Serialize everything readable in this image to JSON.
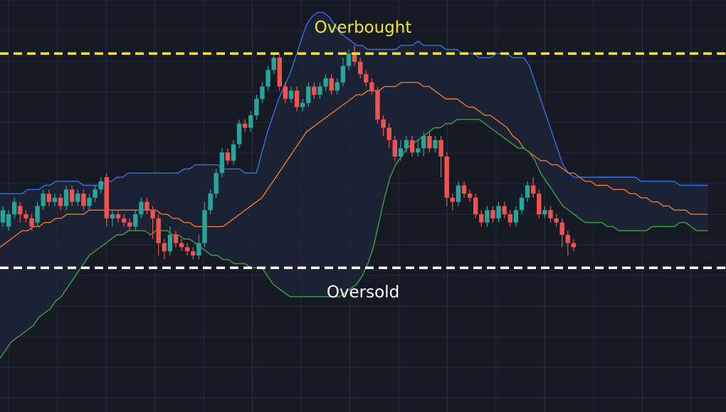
{
  "chart_data": {
    "type": "candlestick",
    "title": "",
    "xlabel": "",
    "ylabel": "",
    "ylim": [
      0,
      100
    ],
    "grid": true,
    "legend": "none",
    "annotations": {
      "overbought": {
        "text": "Overbought",
        "level": 87,
        "color": "#f2e232"
      },
      "oversold": {
        "text": "Oversold",
        "level": 35,
        "color": "#ffffff"
      }
    },
    "colors": {
      "background": "#161a25",
      "grid": "#262b3a",
      "up": "#26a69a",
      "down": "#ef5350",
      "upper_band": "#3a6ee8",
      "middle_band": "#f0782a",
      "lower_band": "#43a047",
      "band_fill": "#1c2638"
    },
    "bands": {
      "upper": [
        53,
        53,
        53,
        53,
        53,
        54,
        54,
        54,
        55,
        55,
        56,
        56,
        56,
        56,
        56,
        55,
        55,
        55,
        55,
        56,
        56,
        57,
        57,
        58,
        58,
        58,
        58,
        58,
        58,
        58,
        58,
        58,
        58,
        59,
        59,
        60,
        60,
        60,
        60,
        60,
        59,
        59,
        59,
        59,
        58,
        58,
        58,
        63,
        68,
        72,
        76,
        79,
        82,
        86,
        90,
        94,
        96,
        97,
        97,
        96,
        94,
        92,
        91,
        90,
        89,
        89,
        88,
        88,
        88,
        88,
        88,
        88,
        89,
        89,
        89,
        90,
        89,
        89,
        89,
        89,
        88,
        88,
        88,
        87,
        87,
        87,
        86,
        86,
        86,
        87,
        87,
        87,
        86,
        86,
        86,
        84,
        80,
        76,
        72,
        68,
        64,
        60,
        58,
        57,
        57,
        57,
        57,
        57,
        57,
        57,
        57,
        57,
        57,
        57,
        57,
        56,
        56,
        56,
        56,
        56,
        56,
        56,
        55,
        55,
        55,
        55,
        55,
        55
      ],
      "middle": [
        40,
        41,
        42,
        43,
        44,
        44,
        45,
        45,
        46,
        46,
        47,
        47,
        48,
        48,
        48,
        48,
        49,
        49,
        49,
        49,
        49,
        49,
        49,
        49,
        49,
        49,
        49,
        49,
        49,
        48,
        48,
        47,
        47,
        46,
        46,
        45,
        45,
        45,
        45,
        45,
        45,
        46,
        47,
        48,
        49,
        50,
        51,
        52,
        54,
        56,
        58,
        60,
        62,
        64,
        66,
        68,
        69,
        70,
        71,
        72,
        73,
        74,
        75,
        76,
        77,
        77,
        78,
        78,
        78,
        79,
        79,
        79,
        80,
        80,
        80,
        80,
        79,
        79,
        78,
        77,
        76,
        76,
        76,
        75,
        74,
        74,
        73,
        72,
        72,
        71,
        70,
        69,
        67,
        66,
        64,
        63,
        62,
        61,
        61,
        60,
        60,
        59,
        58,
        58,
        57,
        56,
        56,
        55,
        55,
        55,
        54,
        54,
        54,
        53,
        53,
        52,
        52,
        51,
        51,
        50,
        50,
        49,
        49,
        49,
        48,
        48,
        48,
        48
      ],
      "lower": [
        13,
        15,
        17,
        18,
        19,
        20,
        21,
        23,
        24,
        25,
        27,
        28,
        30,
        32,
        34,
        36,
        38,
        39,
        40,
        41,
        42,
        43,
        43,
        44,
        44,
        44,
        44,
        43,
        44,
        44,
        44,
        43,
        43,
        42,
        42,
        41,
        40,
        39,
        38,
        38,
        37,
        37,
        36,
        36,
        36,
        35,
        35,
        35,
        33,
        31,
        30,
        29,
        28,
        28,
        28,
        28,
        28,
        28,
        28,
        28,
        28,
        28,
        29,
        30,
        31,
        33,
        36,
        40,
        46,
        52,
        57,
        60,
        62,
        64,
        65,
        66,
        67,
        68,
        69,
        69,
        70,
        70,
        71,
        71,
        71,
        71,
        71,
        70,
        69,
        68,
        67,
        66,
        65,
        64,
        64,
        63,
        61,
        58,
        56,
        54,
        52,
        50,
        49,
        48,
        47,
        46,
        46,
        46,
        46,
        45,
        45,
        44,
        44,
        44,
        44,
        44,
        44,
        45,
        45,
        45,
        45,
        45,
        46,
        46,
        45,
        44,
        44,
        44
      ],
      "start": 0,
      "step": 7.83
    },
    "candles": [
      {
        "o": 46,
        "c": 49,
        "h": 50,
        "l": 45
      },
      {
        "o": 45,
        "c": 48,
        "h": 49,
        "l": 44
      },
      {
        "o": 48,
        "c": 51,
        "h": 52,
        "l": 47
      },
      {
        "o": 50,
        "c": 48,
        "h": 51,
        "l": 46
      },
      {
        "o": 48,
        "c": 47,
        "h": 49,
        "l": 46
      },
      {
        "o": 47,
        "c": 45,
        "h": 48,
        "l": 44
      },
      {
        "o": 46,
        "c": 50,
        "h": 51,
        "l": 45
      },
      {
        "o": 50,
        "c": 53,
        "h": 54,
        "l": 49
      },
      {
        "o": 53,
        "c": 51,
        "h": 54,
        "l": 50
      },
      {
        "o": 51,
        "c": 52,
        "h": 53,
        "l": 50
      },
      {
        "o": 52,
        "c": 50,
        "h": 53,
        "l": 49
      },
      {
        "o": 50,
        "c": 54,
        "h": 55,
        "l": 49
      },
      {
        "o": 54,
        "c": 51,
        "h": 55,
        "l": 50
      },
      {
        "o": 51,
        "c": 53,
        "h": 54,
        "l": 50
      },
      {
        "o": 53,
        "c": 50,
        "h": 54,
        "l": 49
      },
      {
        "o": 50,
        "c": 52,
        "h": 53,
        "l": 49
      },
      {
        "o": 52,
        "c": 54,
        "h": 55,
        "l": 51
      },
      {
        "o": 54,
        "c": 56,
        "h": 57,
        "l": 53
      },
      {
        "o": 57,
        "c": 47,
        "h": 58,
        "l": 45
      },
      {
        "o": 47,
        "c": 48,
        "h": 49,
        "l": 45
      },
      {
        "o": 48,
        "c": 47,
        "h": 49,
        "l": 46
      },
      {
        "o": 47,
        "c": 46,
        "h": 48,
        "l": 45
      },
      {
        "o": 46,
        "c": 45,
        "h": 47,
        "l": 44
      },
      {
        "o": 45,
        "c": 48,
        "h": 49,
        "l": 44
      },
      {
        "o": 48,
        "c": 51,
        "h": 52,
        "l": 47
      },
      {
        "o": 51,
        "c": 49,
        "h": 52,
        "l": 48
      },
      {
        "o": 49,
        "c": 47,
        "h": 50,
        "l": 42
      },
      {
        "o": 47,
        "c": 41,
        "h": 48,
        "l": 38
      },
      {
        "o": 41,
        "c": 39,
        "h": 42,
        "l": 37
      },
      {
        "o": 39,
        "c": 43,
        "h": 45,
        "l": 38
      },
      {
        "o": 43,
        "c": 41,
        "h": 44,
        "l": 40
      },
      {
        "o": 41,
        "c": 40,
        "h": 42,
        "l": 39
      },
      {
        "o": 40,
        "c": 39,
        "h": 41,
        "l": 38
      },
      {
        "o": 39,
        "c": 38,
        "h": 40,
        "l": 37
      },
      {
        "o": 38,
        "c": 41,
        "h": 43,
        "l": 37
      },
      {
        "o": 41,
        "c": 49,
        "h": 51,
        "l": 40
      },
      {
        "o": 49,
        "c": 53,
        "h": 54,
        "l": 48
      },
      {
        "o": 53,
        "c": 58,
        "h": 59,
        "l": 52
      },
      {
        "o": 58,
        "c": 63,
        "h": 64,
        "l": 57
      },
      {
        "o": 63,
        "c": 61,
        "h": 64,
        "l": 60
      },
      {
        "o": 61,
        "c": 65,
        "h": 66,
        "l": 60
      },
      {
        "o": 65,
        "c": 70,
        "h": 71,
        "l": 64
      },
      {
        "o": 70,
        "c": 69,
        "h": 71,
        "l": 68
      },
      {
        "o": 69,
        "c": 72,
        "h": 73,
        "l": 68
      },
      {
        "o": 72,
        "c": 76,
        "h": 77,
        "l": 71
      },
      {
        "o": 76,
        "c": 79,
        "h": 80,
        "l": 75
      },
      {
        "o": 79,
        "c": 83,
        "h": 84,
        "l": 78
      },
      {
        "o": 83,
        "c": 86,
        "h": 87,
        "l": 82
      },
      {
        "o": 86,
        "c": 79,
        "h": 87,
        "l": 78
      },
      {
        "o": 79,
        "c": 76,
        "h": 80,
        "l": 75
      },
      {
        "o": 76,
        "c": 78,
        "h": 79,
        "l": 75
      },
      {
        "o": 78,
        "c": 74,
        "h": 79,
        "l": 73
      },
      {
        "o": 74,
        "c": 75,
        "h": 76,
        "l": 73
      },
      {
        "o": 75,
        "c": 79,
        "h": 80,
        "l": 74
      },
      {
        "o": 79,
        "c": 77,
        "h": 80,
        "l": 76
      },
      {
        "o": 77,
        "c": 79,
        "h": 80,
        "l": 76
      },
      {
        "o": 79,
        "c": 81,
        "h": 82,
        "l": 78
      },
      {
        "o": 81,
        "c": 78,
        "h": 82,
        "l": 77
      },
      {
        "o": 78,
        "c": 80,
        "h": 81,
        "l": 77
      },
      {
        "o": 80,
        "c": 84,
        "h": 86,
        "l": 79
      },
      {
        "o": 84,
        "c": 87,
        "h": 88,
        "l": 83
      },
      {
        "o": 87,
        "c": 85,
        "h": 89,
        "l": 84
      },
      {
        "o": 85,
        "c": 82,
        "h": 86,
        "l": 81
      },
      {
        "o": 82,
        "c": 80,
        "h": 83,
        "l": 79
      },
      {
        "o": 80,
        "c": 78,
        "h": 81,
        "l": 77
      },
      {
        "o": 78,
        "c": 71,
        "h": 79,
        "l": 70
      },
      {
        "o": 71,
        "c": 69,
        "h": 72,
        "l": 67
      },
      {
        "o": 69,
        "c": 66,
        "h": 70,
        "l": 64
      },
      {
        "o": 66,
        "c": 62,
        "h": 67,
        "l": 61
      },
      {
        "o": 62,
        "c": 64,
        "h": 66,
        "l": 61
      },
      {
        "o": 64,
        "c": 66,
        "h": 67,
        "l": 63
      },
      {
        "o": 66,
        "c": 63,
        "h": 67,
        "l": 62
      },
      {
        "o": 63,
        "c": 64,
        "h": 66,
        "l": 62
      },
      {
        "o": 64,
        "c": 67,
        "h": 68,
        "l": 62
      },
      {
        "o": 67,
        "c": 64,
        "h": 68,
        "l": 63
      },
      {
        "o": 64,
        "c": 66,
        "h": 67,
        "l": 63
      },
      {
        "o": 66,
        "c": 62,
        "h": 67,
        "l": 57
      },
      {
        "o": 62,
        "c": 52,
        "h": 63,
        "l": 50
      },
      {
        "o": 52,
        "c": 51,
        "h": 53,
        "l": 49
      },
      {
        "o": 51,
        "c": 55,
        "h": 56,
        "l": 50
      },
      {
        "o": 55,
        "c": 53,
        "h": 56,
        "l": 52
      },
      {
        "o": 53,
        "c": 52,
        "h": 54,
        "l": 51
      },
      {
        "o": 52,
        "c": 48,
        "h": 53,
        "l": 47
      },
      {
        "o": 48,
        "c": 46,
        "h": 49,
        "l": 45
      },
      {
        "o": 46,
        "c": 49,
        "h": 50,
        "l": 45
      },
      {
        "o": 49,
        "c": 47,
        "h": 50,
        "l": 46
      },
      {
        "o": 47,
        "c": 50,
        "h": 51,
        "l": 46
      },
      {
        "o": 50,
        "c": 48,
        "h": 51,
        "l": 47
      },
      {
        "o": 48,
        "c": 46,
        "h": 49,
        "l": 45
      },
      {
        "o": 46,
        "c": 49,
        "h": 50,
        "l": 45
      },
      {
        "o": 49,
        "c": 52,
        "h": 53,
        "l": 48
      },
      {
        "o": 52,
        "c": 55,
        "h": 56,
        "l": 51
      },
      {
        "o": 55,
        "c": 53,
        "h": 57,
        "l": 52
      },
      {
        "o": 53,
        "c": 48,
        "h": 54,
        "l": 47
      },
      {
        "o": 48,
        "c": 49,
        "h": 50,
        "l": 47
      },
      {
        "o": 49,
        "c": 47,
        "h": 50,
        "l": 46
      },
      {
        "o": 47,
        "c": 46,
        "h": 48,
        "l": 45
      },
      {
        "o": 46,
        "c": 43,
        "h": 47,
        "l": 40
      },
      {
        "o": 43,
        "c": 41,
        "h": 44,
        "l": 38
      },
      {
        "o": 41,
        "c": 40,
        "h": 42,
        "l": 39
      }
    ],
    "candle_start": 4,
    "candle_step": 8.1
  }
}
